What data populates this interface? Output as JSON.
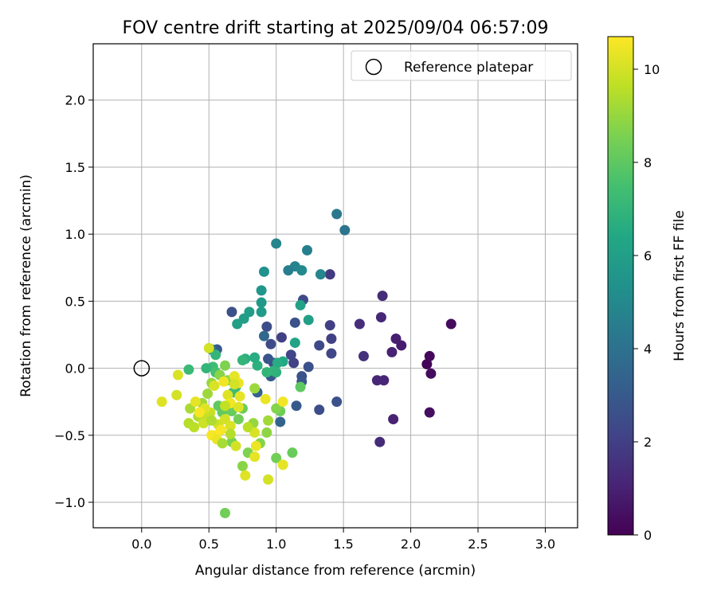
{
  "chart_data": {
    "type": "scatter",
    "title": "FOV centre drift starting at 2025/09/04 06:57:09",
    "xlabel": "Angular distance from reference (arcmin)",
    "ylabel": "Rotation from reference (arcmin)",
    "xlim": [
      -0.36,
      3.24
    ],
    "ylim": [
      -1.19,
      2.42
    ],
    "x_ticks": [
      0.0,
      0.5,
      1.0,
      1.5,
      2.0,
      2.5,
      3.0
    ],
    "y_ticks": [
      -1.0,
      -0.5,
      0.0,
      0.5,
      1.0,
      1.5,
      2.0
    ],
    "x_tick_labels": [
      "0.0",
      "0.5",
      "1.0",
      "1.5",
      "2.0",
      "2.5",
      "3.0"
    ],
    "y_tick_labels": [
      "−1.0",
      "−0.5",
      "0.0",
      "0.5",
      "1.0",
      "1.5",
      "2.0"
    ],
    "grid": true,
    "legend": {
      "placement": "top-right",
      "entries": [
        {
          "label": "Reference platepar",
          "marker": "open-circle"
        }
      ]
    },
    "reference_point": {
      "x": 0.0,
      "y": 0.0
    },
    "colorbar": {
      "label": "Hours from first FF file",
      "colormap": "viridis",
      "range": [
        0,
        10.7
      ],
      "ticks": [
        0,
        2,
        4,
        6,
        8,
        10
      ],
      "tick_labels": [
        "0",
        "2",
        "4",
        "6",
        "8",
        "10"
      ]
    },
    "points": [
      {
        "x": 2.12,
        "y": 0.03,
        "c": 0.1
      },
      {
        "x": 2.14,
        "y": 0.09,
        "c": 0.2
      },
      {
        "x": 2.15,
        "y": -0.04,
        "c": 0.3
      },
      {
        "x": 2.3,
        "y": 0.33,
        "c": 0.3
      },
      {
        "x": 2.14,
        "y": -0.33,
        "c": 0.4
      },
      {
        "x": 1.93,
        "y": 0.17,
        "c": 0.8
      },
      {
        "x": 1.89,
        "y": 0.22,
        "c": 0.9
      },
      {
        "x": 1.86,
        "y": 0.12,
        "c": 1.0
      },
      {
        "x": 1.87,
        "y": -0.38,
        "c": 1.0
      },
      {
        "x": 1.8,
        "y": -0.09,
        "c": 1.1
      },
      {
        "x": 1.75,
        "y": -0.09,
        "c": 1.2
      },
      {
        "x": 1.78,
        "y": 0.38,
        "c": 1.2
      },
      {
        "x": 1.79,
        "y": 0.54,
        "c": 1.3
      },
      {
        "x": 1.77,
        "y": -0.55,
        "c": 1.3
      },
      {
        "x": 1.62,
        "y": 0.33,
        "c": 1.4
      },
      {
        "x": 1.65,
        "y": 0.09,
        "c": 1.5
      },
      {
        "x": 1.4,
        "y": 0.7,
        "c": 1.8
      },
      {
        "x": 1.4,
        "y": 0.32,
        "c": 2.0
      },
      {
        "x": 1.41,
        "y": 0.22,
        "c": 2.0
      },
      {
        "x": 1.41,
        "y": 0.11,
        "c": 2.2
      },
      {
        "x": 1.32,
        "y": 0.17,
        "c": 2.3
      },
      {
        "x": 1.32,
        "y": -0.31,
        "c": 2.5
      },
      {
        "x": 1.45,
        "y": -0.25,
        "c": 2.6
      },
      {
        "x": 1.24,
        "y": 0.01,
        "c": 2.6
      },
      {
        "x": 1.19,
        "y": -0.06,
        "c": 2.7
      },
      {
        "x": 1.19,
        "y": -0.1,
        "c": 2.8
      },
      {
        "x": 1.2,
        "y": 0.51,
        "c": 2.4
      },
      {
        "x": 1.14,
        "y": 0.34,
        "c": 2.7
      },
      {
        "x": 1.11,
        "y": 0.1,
        "c": 2.2
      },
      {
        "x": 1.13,
        "y": 0.04,
        "c": 2.1
      },
      {
        "x": 1.15,
        "y": -0.28,
        "c": 3.0
      },
      {
        "x": 1.04,
        "y": 0.23,
        "c": 2.0
      },
      {
        "x": 0.96,
        "y": 0.18,
        "c": 2.4
      },
      {
        "x": 0.93,
        "y": 0.31,
        "c": 2.5
      },
      {
        "x": 0.98,
        "y": 0.04,
        "c": 2.6
      },
      {
        "x": 0.94,
        "y": 0.07,
        "c": 2.8
      },
      {
        "x": 0.96,
        "y": -0.06,
        "c": 2.9
      },
      {
        "x": 1.03,
        "y": -0.4,
        "c": 3.4
      },
      {
        "x": 0.86,
        "y": -0.18,
        "c": 3.3
      },
      {
        "x": 0.91,
        "y": 0.24,
        "c": 3.6
      },
      {
        "x": 1.45,
        "y": 1.15,
        "c": 4.3
      },
      {
        "x": 1.51,
        "y": 1.03,
        "c": 4.1
      },
      {
        "x": 1.23,
        "y": 0.88,
        "c": 4.6
      },
      {
        "x": 1.33,
        "y": 0.7,
        "c": 4.9
      },
      {
        "x": 1.14,
        "y": 0.76,
        "c": 4.7
      },
      {
        "x": 1.19,
        "y": 0.73,
        "c": 5.0
      },
      {
        "x": 1.09,
        "y": 0.73,
        "c": 4.5
      },
      {
        "x": 1.0,
        "y": 0.93,
        "c": 4.8
      },
      {
        "x": 0.91,
        "y": 0.72,
        "c": 5.4
      },
      {
        "x": 0.89,
        "y": 0.58,
        "c": 5.6
      },
      {
        "x": 0.89,
        "y": 0.49,
        "c": 5.7
      },
      {
        "x": 0.89,
        "y": 0.42,
        "c": 5.8
      },
      {
        "x": 0.8,
        "y": 0.42,
        "c": 5.9
      },
      {
        "x": 0.76,
        "y": 0.37,
        "c": 5.9
      },
      {
        "x": 0.71,
        "y": 0.33,
        "c": 6.0
      },
      {
        "x": 0.67,
        "y": 0.42,
        "c": 2.6
      },
      {
        "x": 1.24,
        "y": 0.36,
        "c": 6.0
      },
      {
        "x": 1.18,
        "y": 0.47,
        "c": 6.1
      },
      {
        "x": 1.14,
        "y": 0.19,
        "c": 6.2
      },
      {
        "x": 1.05,
        "y": 0.05,
        "c": 6.4
      },
      {
        "x": 1.01,
        "y": 0.04,
        "c": 6.6
      },
      {
        "x": 1.0,
        "y": -0.03,
        "c": 6.8
      },
      {
        "x": 0.98,
        "y": -0.02,
        "c": 6.9
      },
      {
        "x": 0.93,
        "y": -0.03,
        "c": 7.0
      },
      {
        "x": 0.86,
        "y": 0.02,
        "c": 6.8
      },
      {
        "x": 0.84,
        "y": 0.08,
        "c": 6.6
      },
      {
        "x": 0.77,
        "y": 0.07,
        "c": 6.7
      },
      {
        "x": 0.75,
        "y": 0.06,
        "c": 7.0
      },
      {
        "x": 0.7,
        "y": -0.14,
        "c": 7.2
      },
      {
        "x": 0.68,
        "y": -0.18,
        "c": 7.3
      },
      {
        "x": 0.56,
        "y": 0.14,
        "c": 3.0
      },
      {
        "x": 0.52,
        "y": 0.14,
        "c": 3.8
      },
      {
        "x": 0.55,
        "y": 0.1,
        "c": 7.0
      },
      {
        "x": 0.53,
        "y": 0.01,
        "c": 7.3
      },
      {
        "x": 0.48,
        "y": 0.0,
        "c": 7.0
      },
      {
        "x": 0.35,
        "y": -0.01,
        "c": 7.2
      },
      {
        "x": 0.55,
        "y": -0.03,
        "c": 7.5
      },
      {
        "x": 0.58,
        "y": -0.05,
        "c": 7.8
      },
      {
        "x": 0.57,
        "y": -0.28,
        "c": 8.0
      },
      {
        "x": 0.6,
        "y": -0.33,
        "c": 8.1
      },
      {
        "x": 0.67,
        "y": -0.32,
        "c": 8.2
      },
      {
        "x": 0.75,
        "y": -0.3,
        "c": 8.3
      },
      {
        "x": 0.72,
        "y": -0.38,
        "c": 8.4
      },
      {
        "x": 0.67,
        "y": -0.55,
        "c": 8.5
      },
      {
        "x": 0.79,
        "y": -0.63,
        "c": 8.6
      },
      {
        "x": 0.75,
        "y": -0.73,
        "c": 8.8
      },
      {
        "x": 0.88,
        "y": -0.56,
        "c": 8.7
      },
      {
        "x": 0.93,
        "y": -0.48,
        "c": 8.9
      },
      {
        "x": 0.83,
        "y": -0.41,
        "c": 9.0
      },
      {
        "x": 0.84,
        "y": -0.15,
        "c": 9.1
      },
      {
        "x": 1.0,
        "y": -0.67,
        "c": 8.4
      },
      {
        "x": 1.12,
        "y": -0.63,
        "c": 8.2
      },
      {
        "x": 1.18,
        "y": -0.14,
        "c": 8.0
      },
      {
        "x": 1.03,
        "y": -0.32,
        "c": 8.3
      },
      {
        "x": 1.0,
        "y": -0.3,
        "c": 8.7
      },
      {
        "x": 0.94,
        "y": -0.39,
        "c": 9.2
      },
      {
        "x": 0.62,
        "y": -1.08,
        "c": 8.4
      },
      {
        "x": 0.62,
        "y": 0.02,
        "c": 8.6
      },
      {
        "x": 0.58,
        "y": -0.05,
        "c": 8.8
      },
      {
        "x": 0.64,
        "y": -0.09,
        "c": 8.9
      },
      {
        "x": 0.52,
        "y": -0.11,
        "c": 9.0
      },
      {
        "x": 0.49,
        "y": -0.19,
        "c": 9.1
      },
      {
        "x": 0.45,
        "y": -0.26,
        "c": 9.2
      },
      {
        "x": 0.36,
        "y": -0.3,
        "c": 9.3
      },
      {
        "x": 0.42,
        "y": -0.36,
        "c": 9.4
      },
      {
        "x": 0.35,
        "y": -0.41,
        "c": 9.5
      },
      {
        "x": 0.39,
        "y": -0.44,
        "c": 9.6
      },
      {
        "x": 0.48,
        "y": -0.37,
        "c": 9.7
      },
      {
        "x": 0.51,
        "y": -0.33,
        "c": 9.8
      },
      {
        "x": 0.57,
        "y": -0.42,
        "c": 9.9
      },
      {
        "x": 0.62,
        "y": -0.38,
        "c": 10.0
      },
      {
        "x": 0.66,
        "y": -0.43,
        "c": 10.1
      },
      {
        "x": 0.64,
        "y": -0.2,
        "c": 10.2
      },
      {
        "x": 0.69,
        "y": -0.06,
        "c": 10.3
      },
      {
        "x": 0.72,
        "y": -0.11,
        "c": 10.4
      },
      {
        "x": 0.66,
        "y": -0.26,
        "c": 10.5
      },
      {
        "x": 0.59,
        "y": -0.46,
        "c": 10.6
      },
      {
        "x": 0.55,
        "y": -0.5,
        "c": 10.7
      },
      {
        "x": 0.7,
        "y": -0.58,
        "c": 10.0
      },
      {
        "x": 0.77,
        "y": -0.8,
        "c": 10.2
      },
      {
        "x": 0.84,
        "y": -0.66,
        "c": 10.3
      },
      {
        "x": 0.85,
        "y": -0.58,
        "c": 10.4
      },
      {
        "x": 0.84,
        "y": -0.48,
        "c": 10.1
      },
      {
        "x": 0.94,
        "y": -0.83,
        "c": 10.0
      },
      {
        "x": 1.05,
        "y": -0.72,
        "c": 10.3
      },
      {
        "x": 0.92,
        "y": -0.23,
        "c": 10.4
      },
      {
        "x": 1.05,
        "y": -0.25,
        "c": 10.5
      },
      {
        "x": 0.15,
        "y": -0.25,
        "c": 10.2
      },
      {
        "x": 0.26,
        "y": -0.2,
        "c": 10.0
      },
      {
        "x": 0.27,
        "y": -0.05,
        "c": 10.1
      },
      {
        "x": 0.4,
        "y": -0.25,
        "c": 10.3
      },
      {
        "x": 0.47,
        "y": -0.3,
        "c": 10.2
      },
      {
        "x": 0.5,
        "y": 0.15,
        "c": 10.0
      },
      {
        "x": 0.43,
        "y": -0.33,
        "c": 10.6
      },
      {
        "x": 0.46,
        "y": -0.41,
        "c": 9.9
      },
      {
        "x": 0.52,
        "y": -0.5,
        "c": 10.6
      },
      {
        "x": 0.56,
        "y": -0.53,
        "c": 10.4
      },
      {
        "x": 0.54,
        "y": -0.13,
        "c": 10.1
      },
      {
        "x": 0.61,
        "y": -0.1,
        "c": 10.5
      },
      {
        "x": 0.73,
        "y": -0.21,
        "c": 10.3
      },
      {
        "x": 0.72,
        "y": -0.29,
        "c": 10.2
      },
      {
        "x": 0.69,
        "y": -0.12,
        "c": 10.0
      },
      {
        "x": 0.62,
        "y": -0.28,
        "c": 9.7
      },
      {
        "x": 0.79,
        "y": -0.44,
        "c": 9.6
      },
      {
        "x": 0.66,
        "y": -0.49,
        "c": 9.5
      },
      {
        "x": 0.52,
        "y": -0.39,
        "c": 9.4
      },
      {
        "x": 0.6,
        "y": -0.56,
        "c": 9.3
      }
    ]
  }
}
